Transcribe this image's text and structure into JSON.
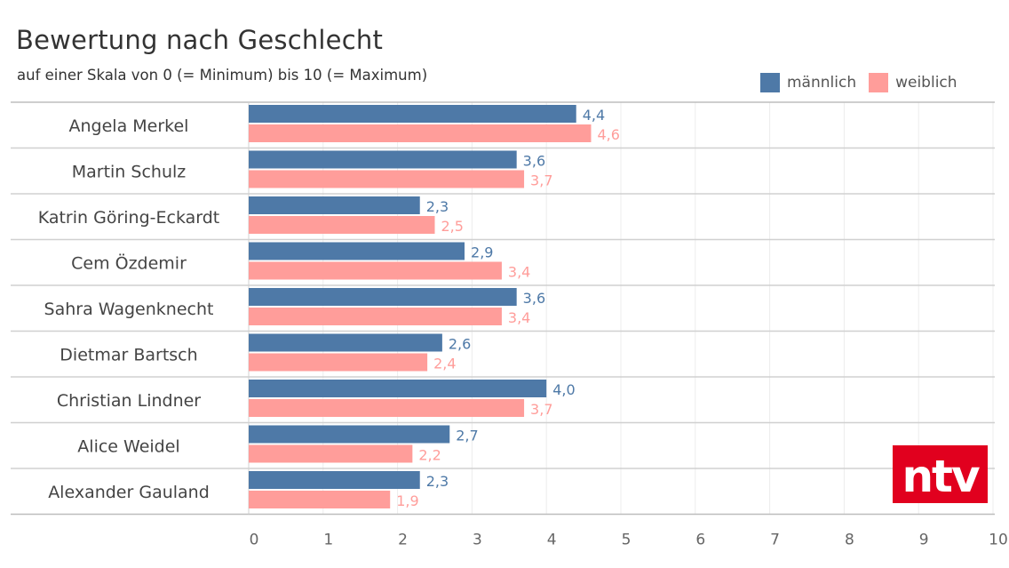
{
  "chart_data": {
    "type": "bar",
    "orientation": "horizontal",
    "title": "Bewertung nach Geschlecht",
    "subtitle": "auf einer Skala von 0 (= Minimum) bis 10 (= Maximum)",
    "categories": [
      "Angela Merkel",
      "Martin Schulz",
      "Katrin Göring-Eckardt",
      "Cem Özdemir",
      "Sahra Wagenknecht",
      "Dietmar Bartsch",
      "Christian Lindner",
      "Alice Weidel",
      "Alexander Gauland"
    ],
    "series": [
      {
        "name": "männlich",
        "color": "#4e79a7",
        "values": [
          4.4,
          3.6,
          2.3,
          2.9,
          3.6,
          2.6,
          4.0,
          2.7,
          2.3
        ],
        "labels": [
          "4,4",
          "3,6",
          "2,3",
          "2,9",
          "3,6",
          "2,6",
          "4,0",
          "2,7",
          "2,3"
        ]
      },
      {
        "name": "weiblich",
        "color": "#ff9d9a",
        "values": [
          4.6,
          3.7,
          2.5,
          3.4,
          3.4,
          2.4,
          3.7,
          2.2,
          1.9
        ],
        "labels": [
          "4,6",
          "3,7",
          "2,5",
          "3,4",
          "3,4",
          "2,4",
          "3,7",
          "2,2",
          "1,9"
        ]
      }
    ],
    "xlim": [
      0,
      10
    ],
    "ticks": [
      "0",
      "1",
      "2",
      "3",
      "4",
      "5",
      "6",
      "7",
      "8",
      "9",
      "10"
    ],
    "grid": true,
    "legend_position": "top-right"
  },
  "logo": {
    "name": "ntv-logo",
    "text": "ntv",
    "color": "#e1001e"
  }
}
